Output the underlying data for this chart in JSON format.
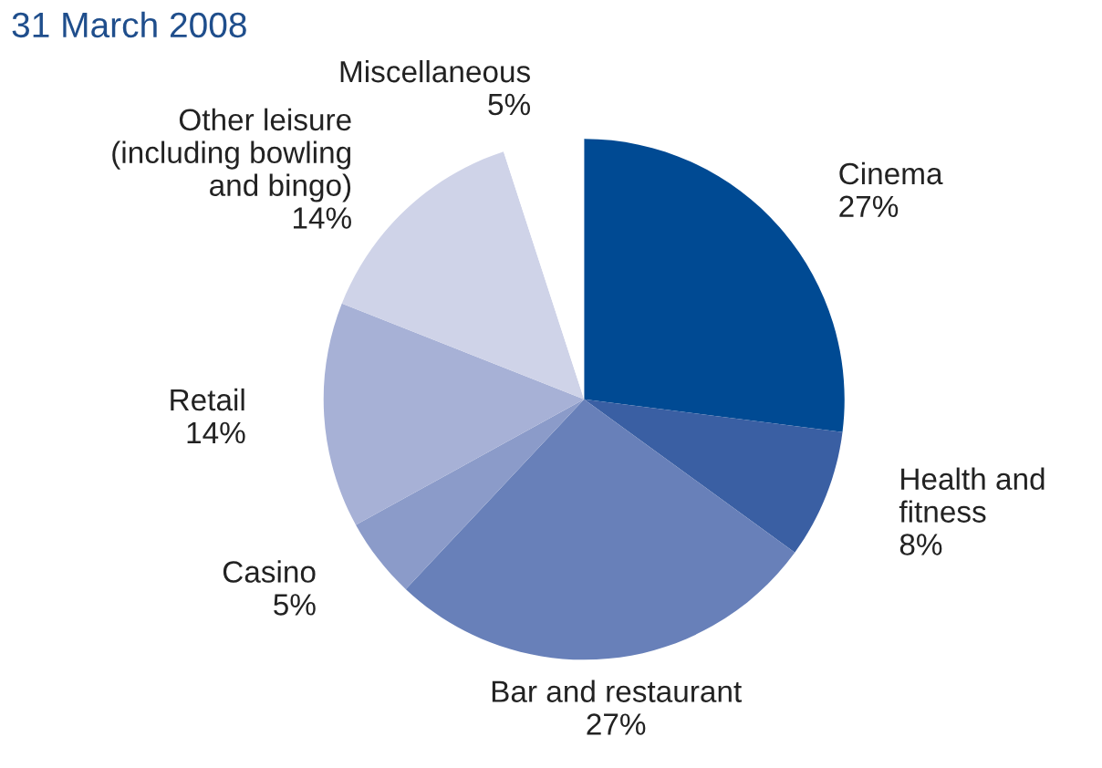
{
  "chart_data": {
    "type": "pie",
    "title": "31 March 2008",
    "categories": [
      "Cinema",
      "Health and\nfitness",
      "Bar and restaurant",
      "Casino",
      "Retail",
      "Other leisure\n(including bowling\nand bingo)",
      "Miscellaneous"
    ],
    "values": [
      27,
      8,
      27,
      5,
      14,
      14,
      5
    ],
    "value_labels": [
      "27%",
      "8%",
      "27%",
      "5%",
      "14%",
      "14%",
      "5%"
    ],
    "colors": [
      "#004a93",
      "#3a5fa3",
      "#6880b9",
      "#8b9bc9",
      "#a7b1d6",
      "#cfd3e8",
      "#ffffff"
    ]
  }
}
